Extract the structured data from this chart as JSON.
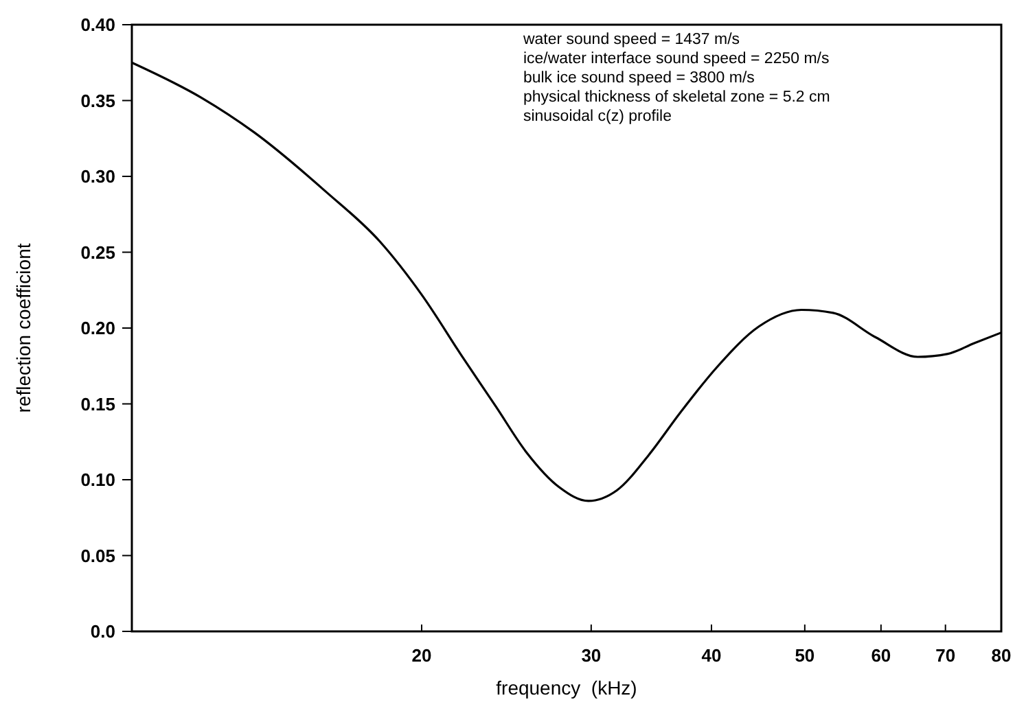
{
  "chart_data": {
    "type": "line",
    "xlabel": "frequency  (kHz)",
    "ylabel": "reflection coefficiont",
    "log": "x",
    "xlim": [
      10,
      80
    ],
    "xticks": [
      20,
      30,
      40,
      50,
      60,
      70,
      80
    ],
    "ylim": [
      0,
      0.4
    ],
    "yticks": [
      {
        "value": 0,
        "label": "0.0"
      },
      0.05,
      {
        "value": 0.1,
        "label": "0.10"
      },
      0.15,
      {
        "value": 0.2,
        "label": "0.20"
      },
      0.25,
      {
        "value": 0.3,
        "label": "0.30"
      },
      0.35,
      {
        "value": 0.4,
        "label": "0.40"
      }
    ],
    "grid": false,
    "annotations": [
      "water sound speed = 1437 m/s",
      "ice/water interface sound speed = 2250 m/s",
      "bulk ice sound speed = 3800 m/s",
      "physical thickness of skeletal zone = 5.2 cm",
      "sinusoidal c(z) profile"
    ],
    "series": [
      {
        "color": "#000000",
        "x": [
          10,
          11.8,
          13.4,
          15.9,
          18.1,
          20,
          22.1,
          23.9,
          25.7,
          27.8,
          29.8,
          31.9,
          34.4,
          37.1,
          40.5,
          44.8,
          49.6,
          53.5,
          59.2,
          65.5,
          70.4,
          75,
          80
        ],
        "values": [
          0.375,
          0.352,
          0.329,
          0.29,
          0.257,
          0.222,
          0.18,
          0.148,
          0.118,
          0.095,
          0.086,
          0.093,
          0.116,
          0.144,
          0.174,
          0.201,
          0.212,
          0.21,
          0.194,
          0.181,
          0.183,
          0.19,
          0.197
        ]
      }
    ]
  }
}
